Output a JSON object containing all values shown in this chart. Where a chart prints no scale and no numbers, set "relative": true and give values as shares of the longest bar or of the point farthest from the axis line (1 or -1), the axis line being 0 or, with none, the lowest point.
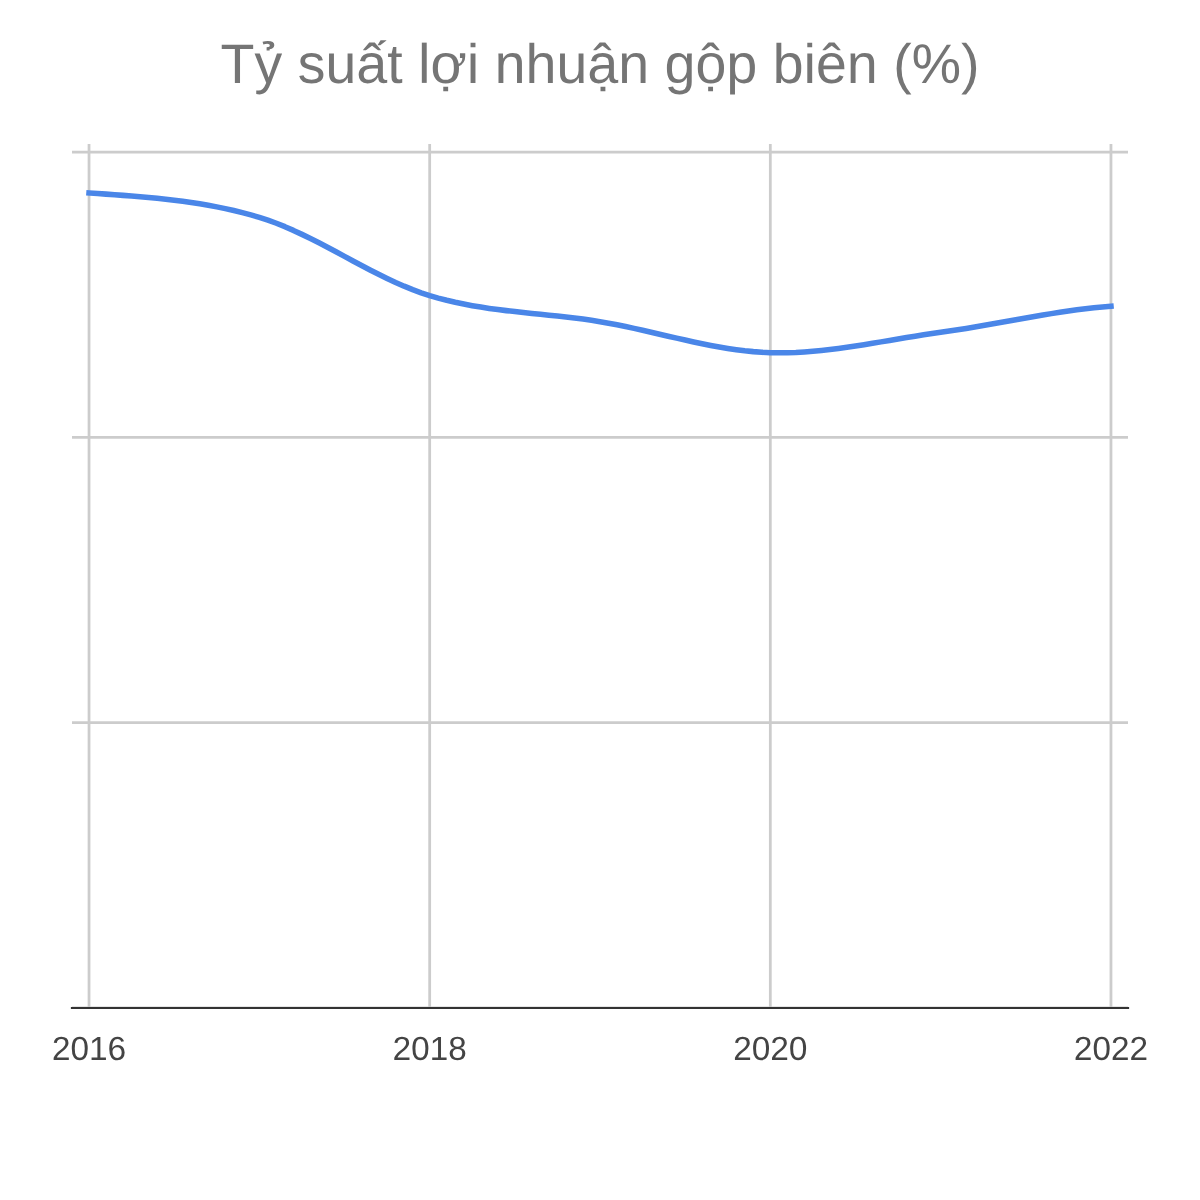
{
  "chart_data": {
    "type": "line",
    "title": "Tỷ suất lợi nhuận gộp biên (%)",
    "x": [
      2016,
      2017,
      2018,
      2019,
      2020,
      2021,
      2022
    ],
    "series": [
      {
        "color": "#4a86e8",
        "values": [
          1.0,
          0.97,
          0.874,
          0.842,
          0.804,
          0.829,
          0.861
        ]
      }
    ],
    "relative": true,
    "xlim": [
      2015.9,
      2022.1
    ],
    "xticks": [
      2016,
      2018,
      2020,
      2022
    ],
    "grid": true,
    "marker": "none",
    "line_style": "solid"
  }
}
